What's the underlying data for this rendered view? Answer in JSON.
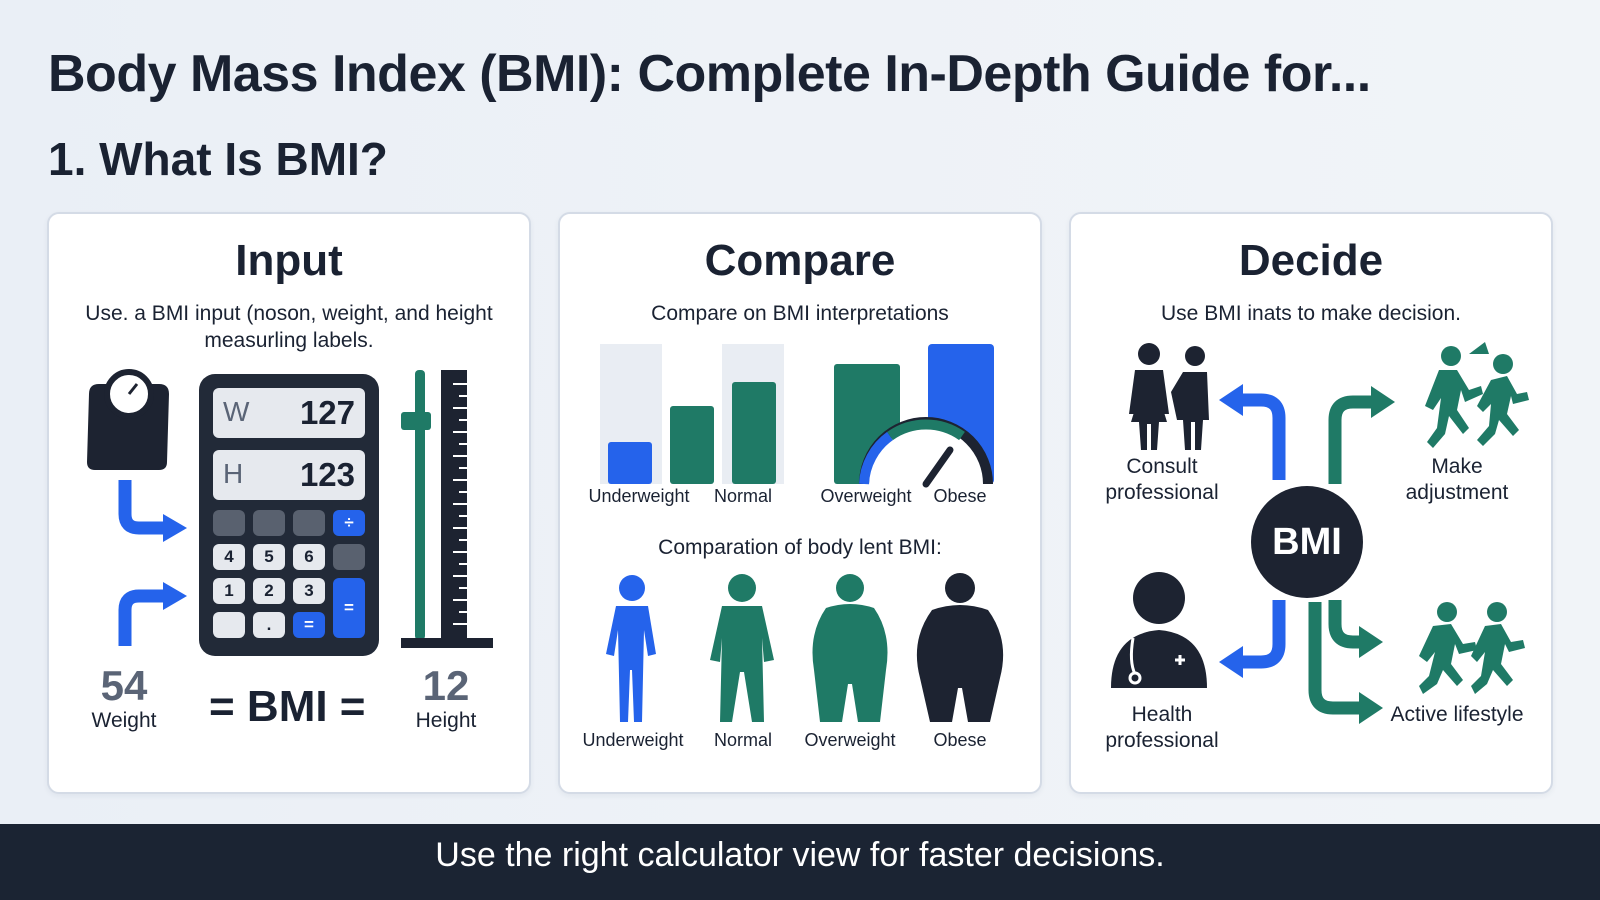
{
  "title": "Body Mass Index (BMI): Complete In-Depth Guide for...",
  "section": "1. What Is BMI?",
  "panels": {
    "input": {
      "heading": "Input",
      "description": "Use. a BMI input (noson, weight, and height measurling labels.",
      "calc_weight_key": "W",
      "calc_weight_value": "127",
      "calc_height_key": "H",
      "calc_height_value": "123",
      "keys": {
        "k_div": "÷",
        "k4": "4",
        "k5": "5",
        "k6": "6",
        "k1": "1",
        "k2": "2",
        "k3": "3",
        "k_eq": "=",
        "k_dot": ".",
        "k_eq2": "="
      },
      "weight_number": "54",
      "weight_label": "Weight",
      "height_number": "12",
      "height_label": "Height",
      "formula": "= BMI ="
    },
    "compare": {
      "heading": "Compare",
      "description": "Compare on BMI interpretations",
      "bar_labels": [
        "Underweight",
        "Normal",
        "Overweight",
        "Obese"
      ],
      "subheading": "Comparation of body lent BMI:",
      "figure_labels": [
        "Underweight",
        "Normal",
        "Overweight",
        "Obese"
      ]
    },
    "decide": {
      "heading": "Decide",
      "description": "Use BMI inats to make decision.",
      "center": "BMI",
      "consult": "Consult professional",
      "adjust": "Make adjustment",
      "health": "Health professional",
      "active": "Active lifestyle"
    }
  },
  "footer": "Use the right calculator view for faster decisions.",
  "colors": {
    "blue": "#2563eb",
    "teal": "#1f7a66",
    "dark": "#1d2331",
    "light_bar": "#e9edf3"
  },
  "icons": [
    "scale-icon",
    "arrow-icon",
    "calculator-icon",
    "ruler-icon",
    "gauge-icon",
    "body-figure-icon",
    "people-icon",
    "doctor-icon",
    "running-icon"
  ]
}
